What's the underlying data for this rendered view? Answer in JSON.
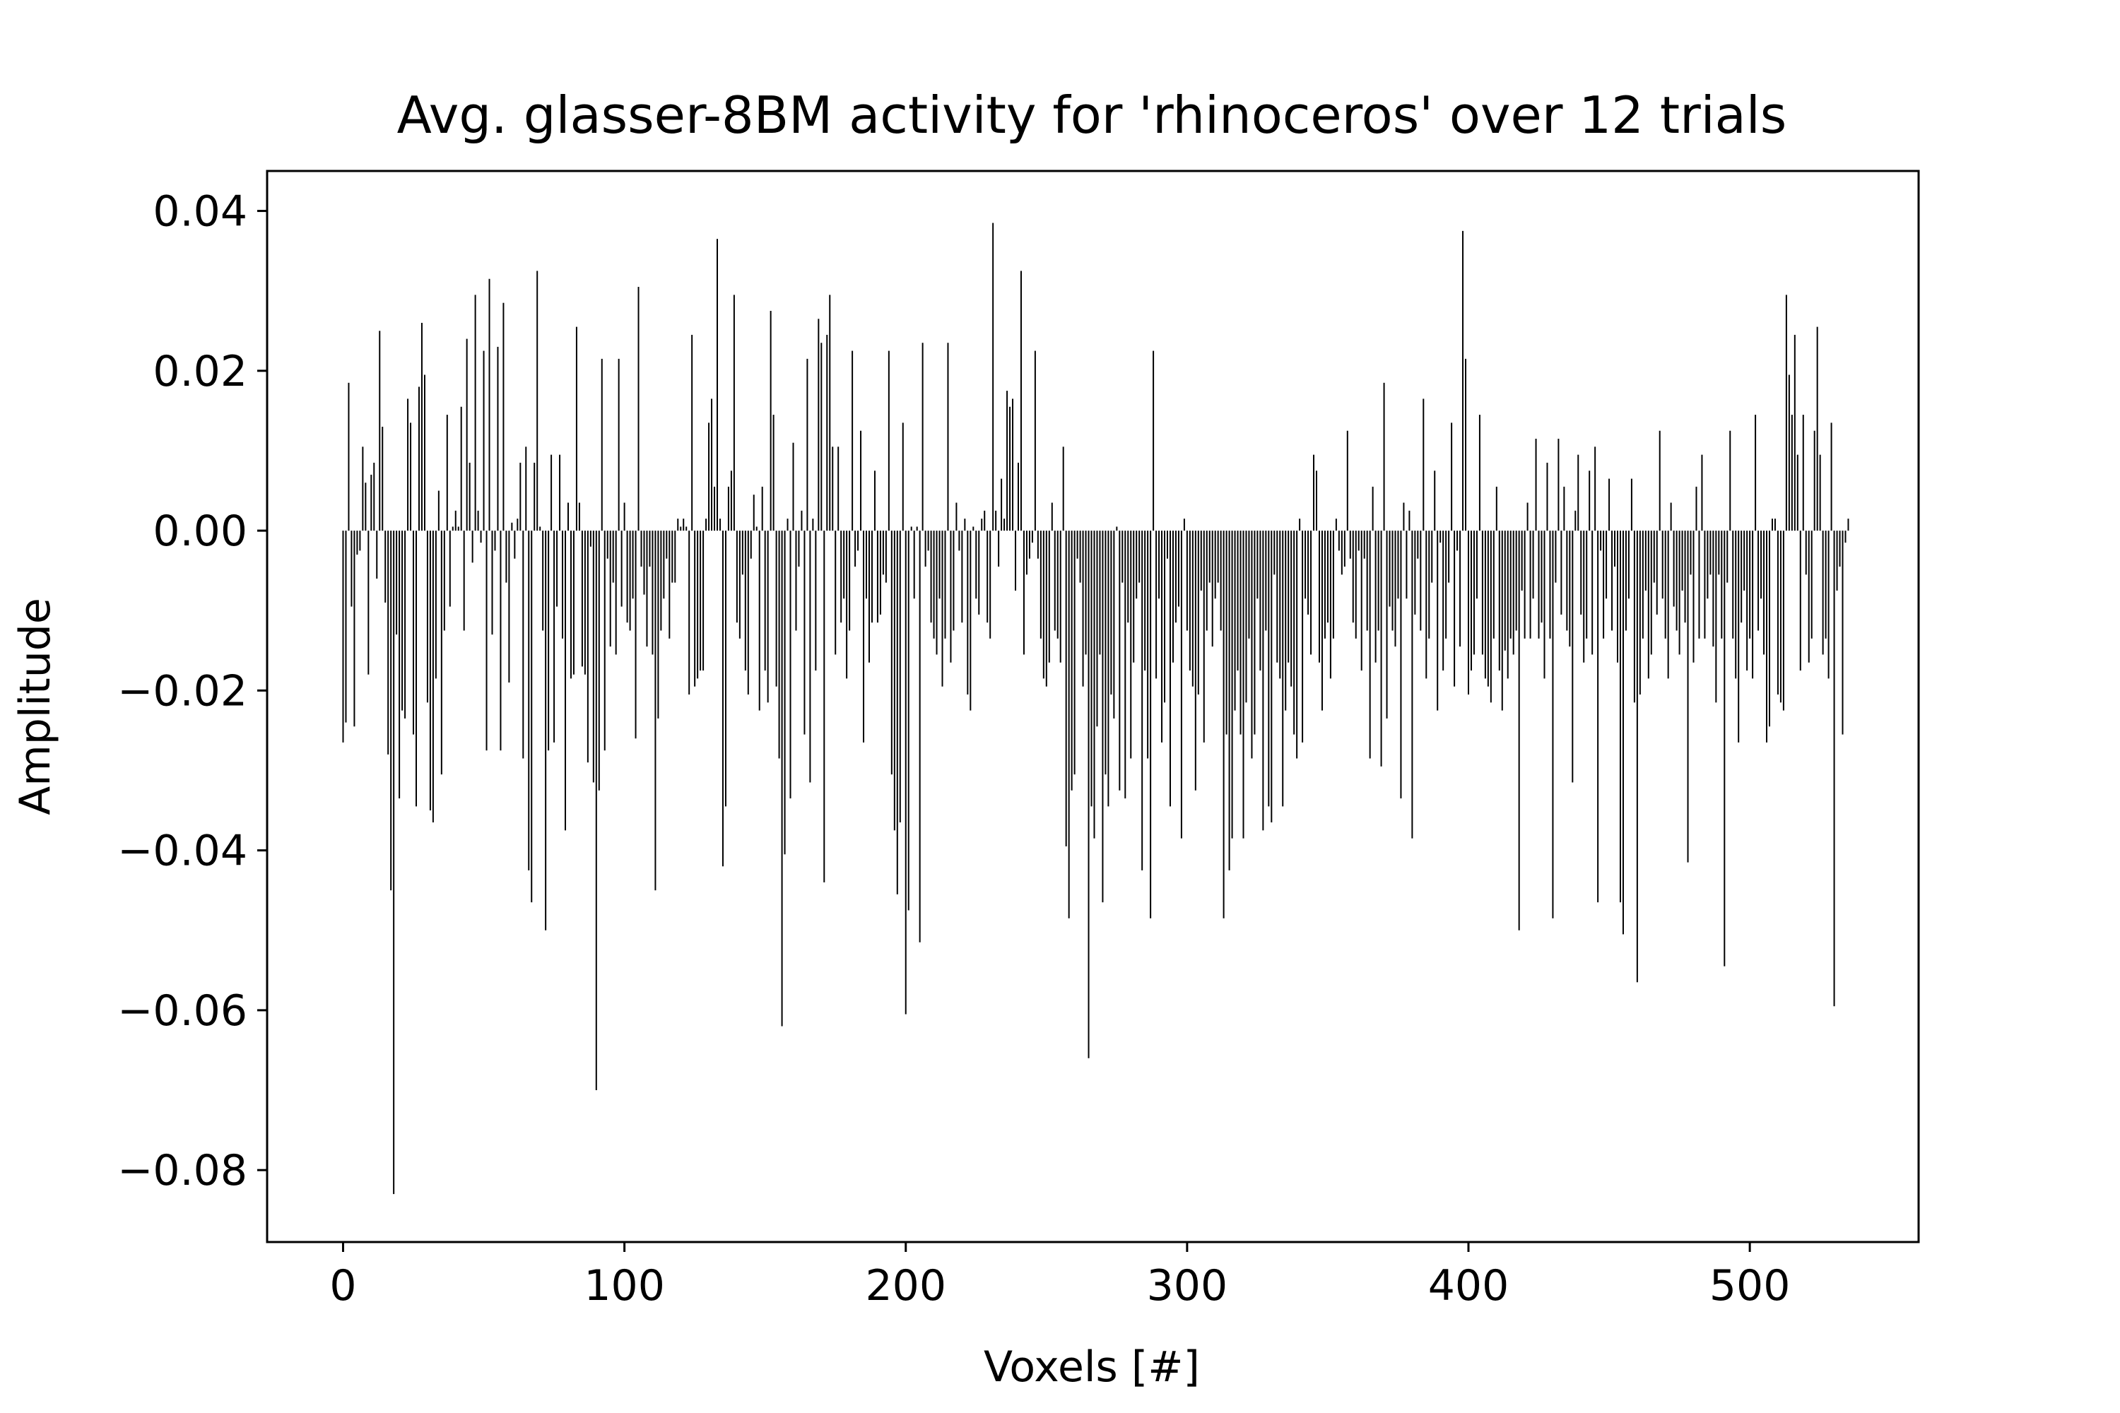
{
  "chart_data": {
    "type": "bar",
    "title": "Avg. glasser-8BM activity for 'rhinoceros' over 12 trials",
    "xlabel": "Voxels [#]",
    "ylabel": "Amplitude",
    "xlim": [
      -27,
      560
    ],
    "ylim": [
      -0.089,
      0.045
    ],
    "x_ticks": [
      0,
      100,
      200,
      300,
      400,
      500
    ],
    "y_ticks": [
      -0.08,
      -0.06,
      -0.04,
      -0.02,
      0.0,
      0.02,
      0.04
    ],
    "x_tick_labels": [
      "0",
      "100",
      "200",
      "300",
      "400",
      "500"
    ],
    "y_tick_labels": [
      "−0.08",
      "−0.06",
      "−0.04",
      "−0.02",
      "0.00",
      "0.02",
      "0.04"
    ],
    "grid": false,
    "legend": false,
    "bar_color": "#000000",
    "series": [
      {
        "x_start": 0,
        "values": [
          -0.0265,
          -0.024,
          0.0185,
          -0.0095,
          -0.0245,
          -0.003,
          -0.0025,
          0.0105,
          0.006,
          -0.018,
          0.007,
          0.0085,
          -0.006,
          0.025,
          0.013,
          -0.009,
          -0.028,
          -0.045,
          -0.083,
          -0.013,
          -0.0335,
          -0.0225,
          -0.0235,
          0.0165,
          0.0135,
          -0.0255,
          -0.0345,
          0.018,
          0.026,
          0.0195,
          -0.0215,
          -0.035,
          -0.0365,
          -0.0185,
          0.005,
          -0.0305,
          -0.0125,
          0.0145,
          -0.0095,
          0.0005,
          0.0025,
          0.0005,
          0.0155,
          -0.0125,
          0.024,
          0.0085,
          -0.004,
          0.0295,
          0.0025,
          -0.0015,
          0.0225,
          -0.0275,
          0.0315,
          -0.013,
          -0.0025,
          0.023,
          -0.0275,
          0.0285,
          -0.0065,
          -0.019,
          0.001,
          -0.0035,
          0.0015,
          0.0085,
          -0.0285,
          0.0105,
          -0.0425,
          -0.0465,
          0.0085,
          0.0325,
          0.0005,
          -0.0125,
          -0.05,
          -0.0275,
          0.0095,
          -0.0265,
          -0.0095,
          0.0095,
          -0.0135,
          -0.0375,
          0.0035,
          -0.0185,
          -0.018,
          0.0255,
          0.0035,
          -0.017,
          -0.018,
          -0.029,
          -0.002,
          -0.0315,
          -0.07,
          -0.0325,
          0.0215,
          -0.0275,
          -0.0035,
          -0.0145,
          -0.0065,
          -0.0155,
          0.0215,
          -0.0095,
          0.0035,
          -0.0115,
          -0.0125,
          -0.0085,
          -0.026,
          0.0305,
          -0.0045,
          -0.008,
          -0.0145,
          -0.0045,
          -0.0155,
          -0.045,
          -0.0235,
          -0.0125,
          -0.0085,
          -0.0035,
          -0.0135,
          -0.0065,
          -0.0065,
          0.0015,
          0.0005,
          0.0015,
          0.0005,
          -0.0205,
          0.0245,
          -0.0195,
          -0.0185,
          -0.0175,
          -0.0175,
          0.0015,
          0.0135,
          0.0165,
          0.0055,
          0.0365,
          0.0015,
          -0.042,
          -0.0345,
          0.0055,
          0.0075,
          0.0295,
          -0.0115,
          -0.0135,
          -0.0055,
          -0.0175,
          -0.0205,
          -0.0035,
          0.0045,
          0.0005,
          -0.0225,
          0.0055,
          -0.0175,
          -0.0215,
          0.0275,
          0.0145,
          -0.0195,
          -0.0285,
          -0.062,
          -0.0405,
          0.0015,
          -0.0335,
          0.011,
          -0.0125,
          -0.0045,
          0.0025,
          -0.0255,
          0.0215,
          -0.0315,
          0.0015,
          -0.0175,
          0.0265,
          0.0235,
          -0.044,
          0.0245,
          0.0295,
          0.0105,
          -0.0155,
          0.0105,
          -0.0115,
          -0.0085,
          -0.0185,
          -0.0125,
          0.0225,
          -0.0045,
          -0.0025,
          0.0125,
          -0.0265,
          -0.0085,
          -0.0165,
          -0.0115,
          0.0075,
          -0.0115,
          -0.0105,
          -0.0055,
          -0.0065,
          0.0225,
          -0.0305,
          -0.0375,
          -0.0455,
          -0.0365,
          0.0135,
          -0.0605,
          -0.0475,
          0.0005,
          -0.0085,
          0.0005,
          -0.0515,
          0.0235,
          -0.0045,
          -0.0025,
          -0.0115,
          -0.0135,
          -0.0155,
          -0.0085,
          -0.0195,
          -0.0135,
          0.0235,
          -0.0165,
          -0.0125,
          0.0035,
          -0.0025,
          -0.0115,
          0.0015,
          -0.0205,
          -0.0225,
          0.0005,
          -0.0085,
          -0.0105,
          0.0015,
          0.0025,
          -0.0115,
          -0.0135,
          0.0385,
          0.0025,
          -0.0045,
          0.0065,
          0.0015,
          0.0175,
          0.0155,
          0.0165,
          -0.0075,
          0.0085,
          0.0325,
          -0.0155,
          -0.0055,
          -0.0035,
          -0.0015,
          0.0225,
          -0.0035,
          -0.0135,
          -0.0185,
          -0.0195,
          -0.0165,
          0.0035,
          -0.0125,
          -0.0135,
          -0.0165,
          0.0105,
          -0.0395,
          -0.0485,
          -0.0325,
          -0.0305,
          -0.0035,
          -0.0065,
          -0.0195,
          -0.0155,
          -0.066,
          -0.0345,
          -0.0385,
          -0.0245,
          -0.0155,
          -0.0465,
          -0.0305,
          -0.0345,
          -0.0205,
          -0.0235,
          0.0005,
          -0.0325,
          -0.0065,
          -0.0335,
          -0.0115,
          -0.0285,
          -0.0165,
          -0.0085,
          -0.0065,
          -0.0425,
          -0.0175,
          -0.0285,
          -0.0485,
          0.0225,
          -0.0185,
          -0.0085,
          -0.0265,
          -0.0215,
          -0.0035,
          -0.0345,
          -0.0165,
          -0.0115,
          -0.0095,
          -0.0385,
          0.0015,
          -0.0125,
          -0.0175,
          -0.0195,
          -0.0325,
          -0.0205,
          -0.0075,
          -0.0265,
          -0.0125,
          -0.0065,
          -0.0145,
          -0.0085,
          -0.0065,
          -0.0125,
          -0.0485,
          -0.0255,
          -0.0425,
          -0.0385,
          -0.0225,
          -0.0175,
          -0.0255,
          -0.0385,
          -0.0215,
          -0.0135,
          -0.0285,
          -0.0255,
          -0.0085,
          -0.0175,
          -0.0375,
          -0.0125,
          -0.0345,
          -0.0365,
          -0.0055,
          -0.0165,
          -0.0185,
          -0.0345,
          -0.0225,
          -0.0165,
          -0.0195,
          -0.0255,
          -0.0285,
          0.0015,
          -0.0265,
          -0.0085,
          -0.0105,
          -0.0155,
          0.0095,
          0.0075,
          -0.0165,
          -0.0225,
          -0.0135,
          -0.0115,
          -0.0185,
          -0.0135,
          0.0015,
          -0.0025,
          -0.0055,
          -0.0045,
          0.0125,
          -0.0035,
          -0.0115,
          -0.0135,
          -0.0025,
          -0.0175,
          -0.0035,
          -0.0125,
          -0.0285,
          0.0055,
          -0.0165,
          -0.0125,
          -0.0295,
          0.0185,
          -0.0235,
          -0.0095,
          -0.0125,
          -0.0145,
          -0.0085,
          -0.0335,
          0.0035,
          -0.0085,
          0.0025,
          -0.0385,
          -0.0105,
          -0.0035,
          -0.0125,
          0.0165,
          -0.0185,
          -0.0135,
          -0.0065,
          0.0075,
          -0.0225,
          -0.0015,
          -0.0175,
          -0.0135,
          -0.0065,
          0.0135,
          -0.0195,
          -0.0025,
          -0.0145,
          0.0375,
          0.0215,
          -0.0205,
          -0.0175,
          -0.0155,
          -0.0085,
          0.0145,
          -0.0155,
          -0.0185,
          -0.0195,
          -0.0215,
          -0.0135,
          0.0055,
          -0.0175,
          -0.0225,
          -0.015,
          -0.0185,
          -0.0135,
          -0.0155,
          -0.0125,
          -0.05,
          -0.0075,
          -0.0135,
          0.0035,
          -0.0135,
          -0.0085,
          0.0115,
          -0.0135,
          -0.0115,
          -0.0185,
          0.0085,
          -0.0135,
          -0.0485,
          -0.0065,
          0.0115,
          -0.0105,
          0.0055,
          -0.0125,
          -0.0145,
          -0.0315,
          0.0025,
          0.0095,
          -0.0105,
          -0.0165,
          -0.0135,
          0.0075,
          -0.0155,
          0.0105,
          -0.0465,
          -0.0025,
          -0.0135,
          -0.0085,
          0.0065,
          -0.0125,
          -0.0045,
          -0.0165,
          -0.0465,
          -0.0505,
          -0.0125,
          -0.0085,
          0.0065,
          -0.0215,
          -0.0565,
          -0.0205,
          -0.0135,
          -0.0075,
          -0.0185,
          -0.0155,
          -0.0065,
          -0.0105,
          0.0125,
          -0.0085,
          -0.0135,
          -0.0185,
          0.0035,
          -0.0095,
          -0.0125,
          -0.0155,
          -0.0075,
          -0.0115,
          -0.0415,
          -0.0055,
          -0.0165,
          0.0055,
          -0.0135,
          0.0095,
          -0.0135,
          -0.0085,
          -0.0055,
          -0.0145,
          -0.0215,
          -0.0055,
          -0.0135,
          -0.0545,
          -0.0065,
          0.0125,
          -0.0135,
          -0.0185,
          -0.0265,
          -0.0115,
          -0.0075,
          -0.0175,
          -0.0135,
          -0.0185,
          0.0145,
          -0.0125,
          -0.0085,
          -0.0155,
          -0.0265,
          -0.0245,
          0.0015,
          0.0015,
          -0.0205,
          -0.0215,
          -0.0225,
          0.0295,
          0.0195,
          0.0145,
          0.0245,
          0.0095,
          -0.0175,
          0.0145,
          -0.0055,
          -0.0165,
          -0.0135,
          0.0125,
          0.0255,
          0.0095,
          -0.0155,
          -0.0135,
          -0.0185,
          0.0135,
          -0.0595,
          -0.0075,
          -0.0045,
          -0.0255,
          -0.0015,
          0.0015
        ]
      }
    ]
  }
}
